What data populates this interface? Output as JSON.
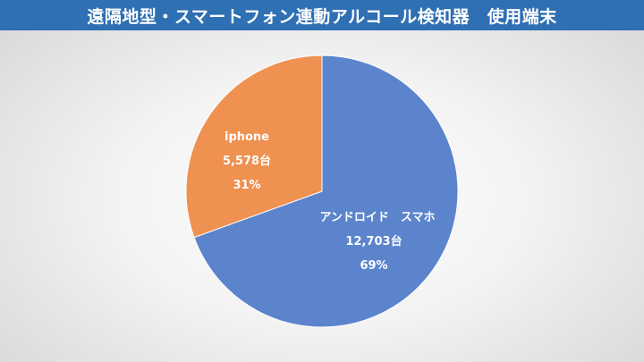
{
  "title": "遠隔地型・スマートフォン連動アルコール検知器　使用端末",
  "colors": {
    "title_bar": "#2f6fb3",
    "android": "#5b84cc",
    "iphone": "#ef9150",
    "label_text": "#ffffff"
  },
  "chart_data": {
    "type": "pie",
    "title": "遠隔地型・スマートフォン連動アルコール検知器　使用端末",
    "slices": [
      {
        "name": "アンドロイド　スマホ",
        "value": 12703,
        "count_label": "12,703台",
        "percent_label": "69%",
        "color": "#5b84cc"
      },
      {
        "name": "iphone",
        "value": 5578,
        "count_label": "5,578台",
        "percent_label": "31%",
        "color": "#ef9150"
      }
    ]
  }
}
